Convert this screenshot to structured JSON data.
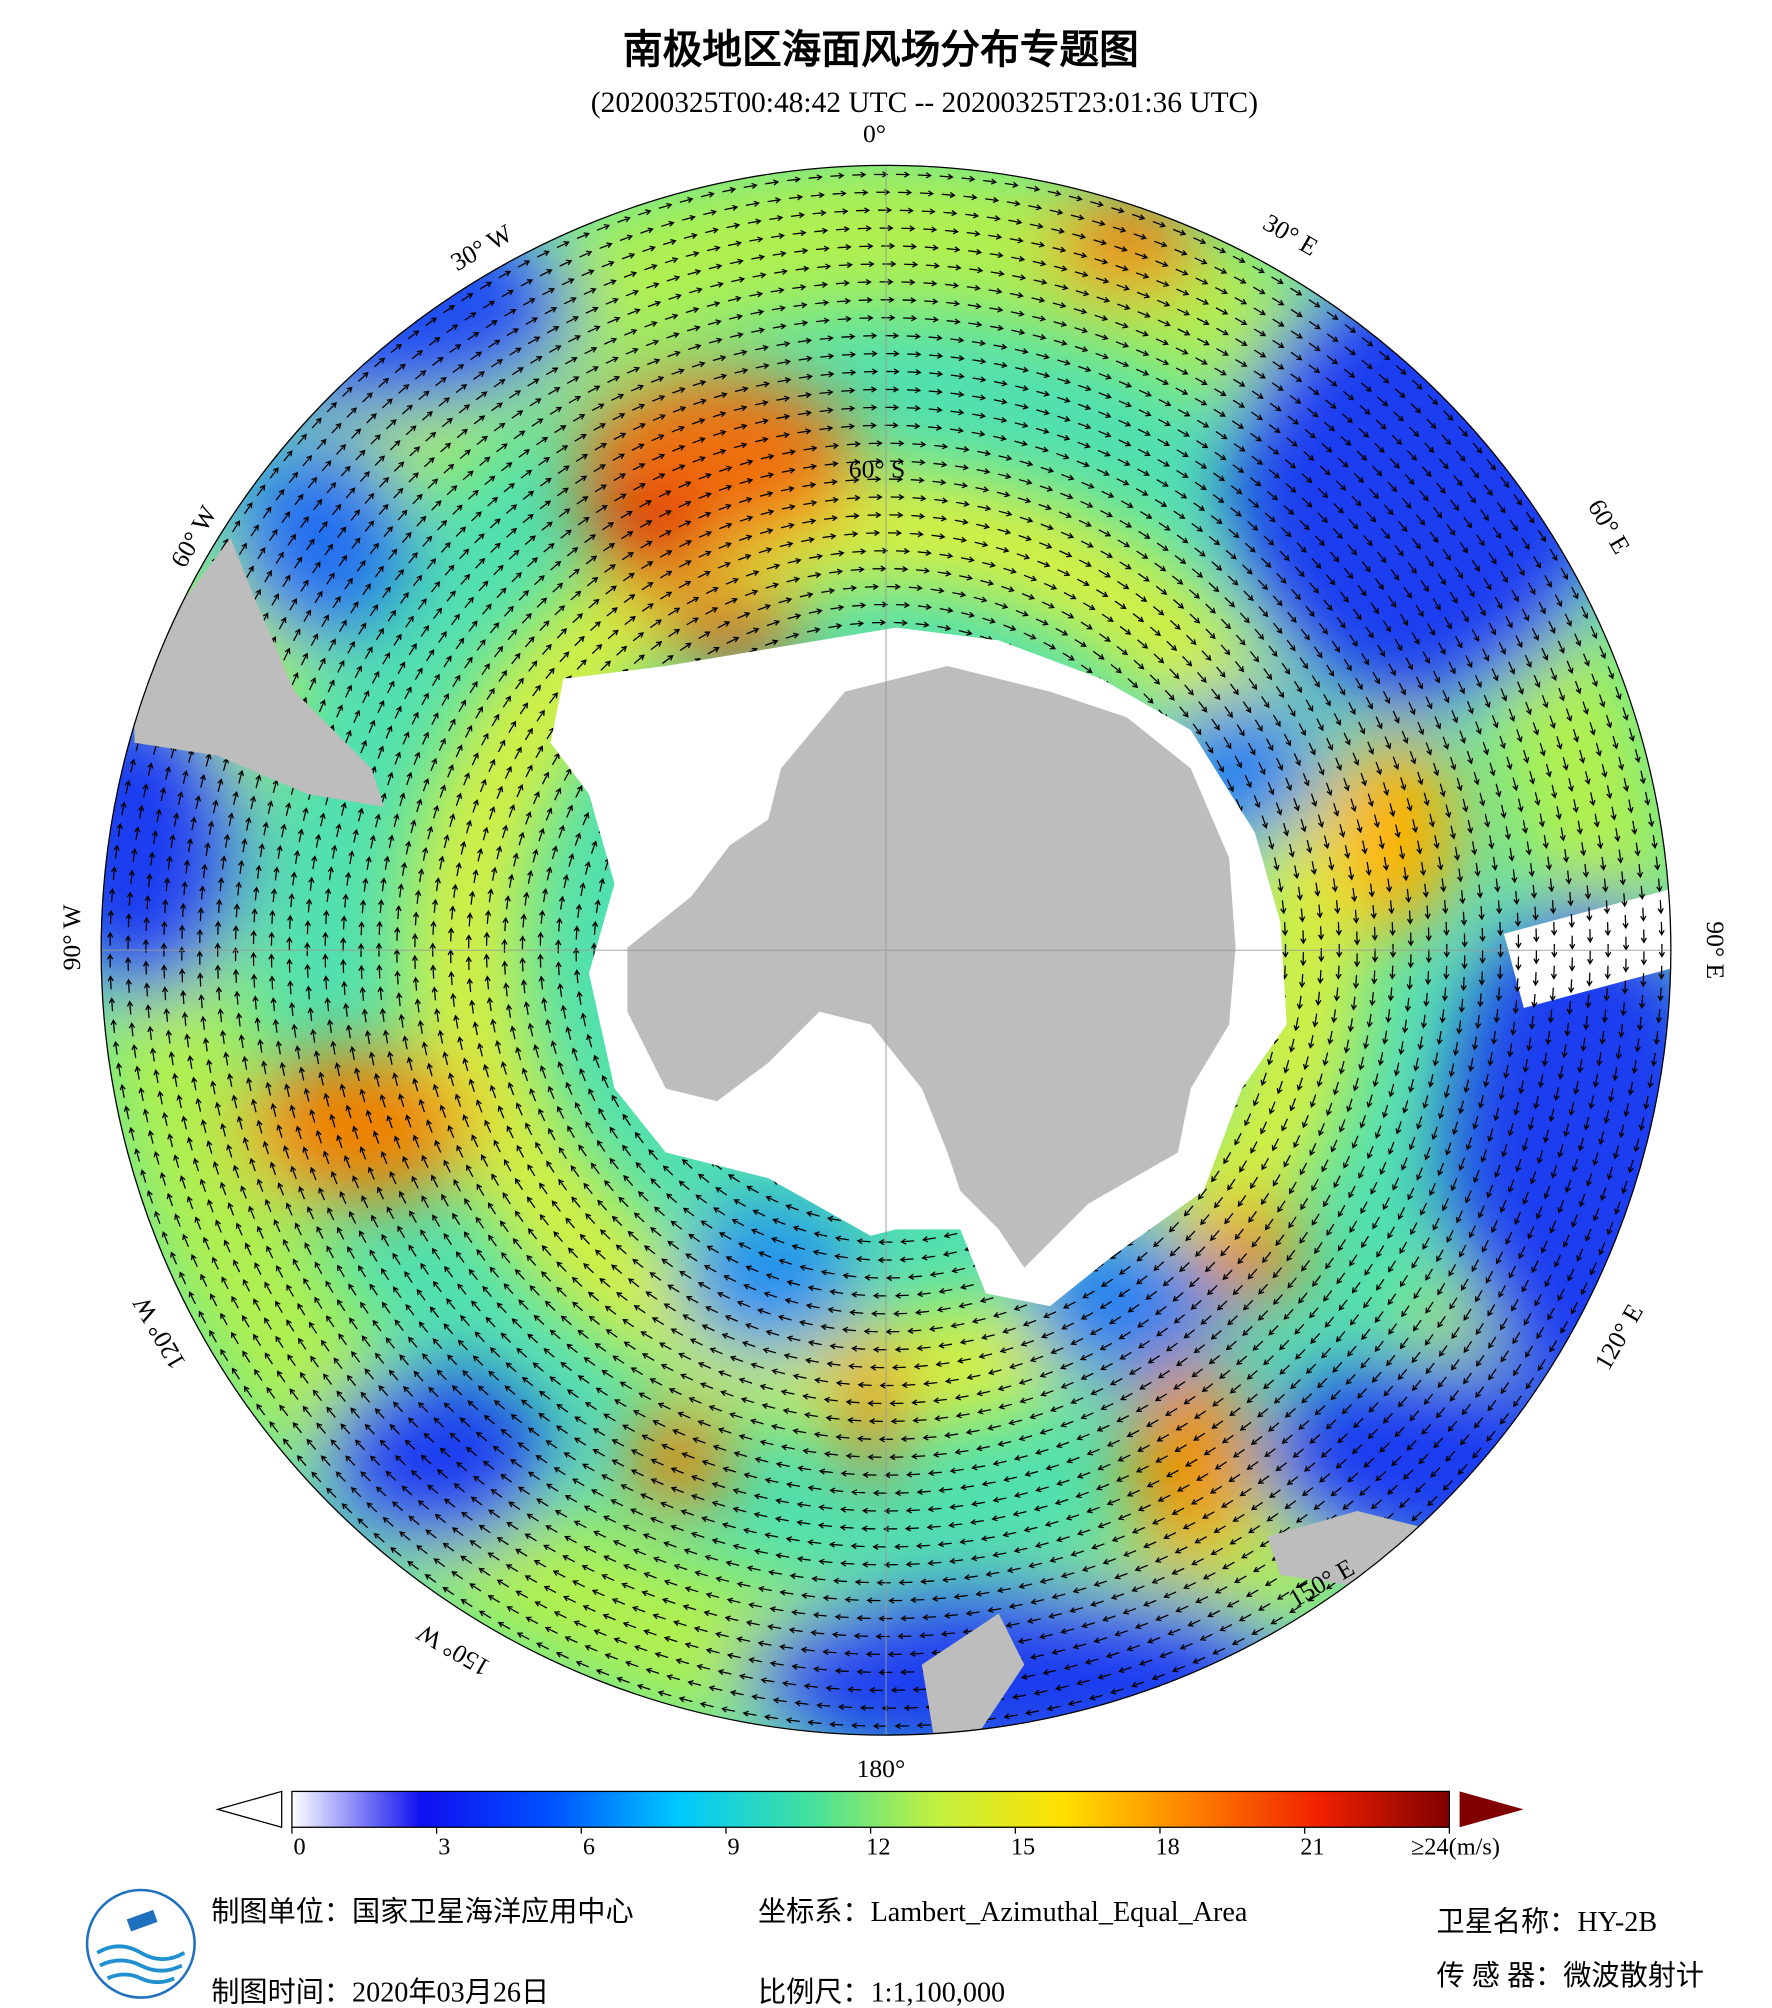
{
  "header": {
    "title": "南极地区海面风场分布专题图",
    "subtitle": "(20200325T00:48:42 UTC -- 20200325T23:01:36 UTC)"
  },
  "map": {
    "meridian_labels": [
      "0°",
      "30° E",
      "60° E",
      "90° E",
      "120° E",
      "150° E",
      "180°",
      "150° W",
      "120° W",
      "90° W",
      "60° W",
      "30° W"
    ],
    "parallel_label": "60° S"
  },
  "colorbar": {
    "range": [
      0,
      24
    ],
    "ticks": [
      0,
      3,
      6,
      9,
      12,
      15,
      18,
      21,
      {
        "value": 24,
        "label": "≥24(m/s)"
      }
    ],
    "colors": [
      "#ffffff",
      "#1010f0",
      "#0050ff",
      "#00c8ff",
      "#40e0a0",
      "#c0f040",
      "#ffe000",
      "#ff8000",
      "#f02000",
      "#800000"
    ]
  },
  "footer": {
    "producer": "制图单位：国家卫星海洋应用中心",
    "date": "制图时间：2020年03月26日",
    "projection": "坐标系：Lambert_Azimuthal_Equal_Area",
    "scale": "比例尺：1:1,100,000",
    "satellite": "卫星名称：HY-2B",
    "sensor": "传 感 器：微波散射计"
  }
}
